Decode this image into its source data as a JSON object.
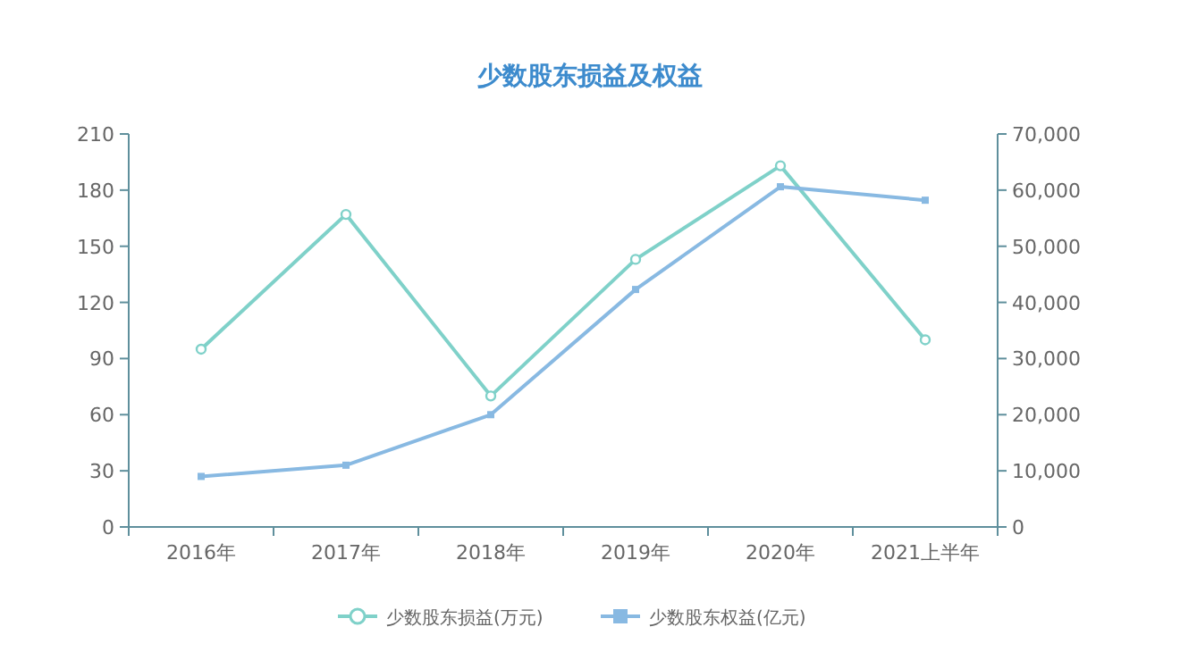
{
  "chart_data": {
    "type": "line",
    "title": "少数股东损益及权益",
    "categories": [
      "2016年",
      "2017年",
      "2018年",
      "2019年",
      "2020年",
      "2021上半年"
    ],
    "series": [
      {
        "name": "少数股东损益(万元)",
        "color": "#7fd1c9",
        "marker": "circle",
        "values": [
          95,
          167,
          70,
          143,
          193,
          100
        ]
      },
      {
        "name": "少数股东权益(亿元)",
        "color": "#88b9e2",
        "marker": "square",
        "axis": "y2",
        "values": [
          9000,
          11000,
          20000,
          42300,
          60600,
          58200
        ]
      }
    ],
    "ylim": [
      0,
      210
    ],
    "yticks": [
      0,
      30,
      60,
      90,
      120,
      150,
      180,
      210
    ],
    "y2lim": [
      0,
      70000
    ],
    "y2ticks": [
      0,
      {
        "value": 10000,
        "label": "10,000"
      },
      {
        "value": 20000,
        "label": "20,000"
      },
      {
        "value": 30000,
        "label": "30,000"
      },
      {
        "value": 40000,
        "label": "40,000"
      },
      {
        "value": 50000,
        "label": "50,000"
      },
      {
        "value": 60000,
        "label": "60,000"
      },
      {
        "value": 70000,
        "label": "70,000"
      }
    ],
    "legend": "bottom",
    "grid": false
  }
}
